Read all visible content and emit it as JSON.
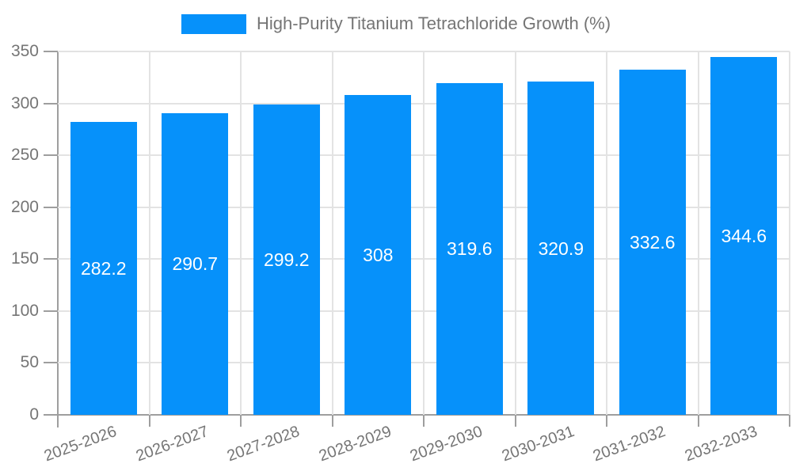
{
  "legend": {
    "label": "High-Purity Titanium Tetrachloride Growth (%)"
  },
  "colors": {
    "bar": "#0691fa",
    "grid": "#e3e3e3",
    "axis": "#9e9e9e",
    "tick_label": "#757575",
    "bar_label": "#ffffff",
    "legend_text": "#757575"
  },
  "chart_data": {
    "type": "bar",
    "title": "High-Purity Titanium Tetrachloride Growth (%)",
    "categories": [
      "2025-2026",
      "2026-2027",
      "2027-2028",
      "2028-2029",
      "2029-2030",
      "2030-2031",
      "2031-2032",
      "2032-2033"
    ],
    "values": [
      282.2,
      290.7,
      299.2,
      308,
      319.6,
      320.9,
      332.6,
      344.6
    ],
    "value_labels": [
      "282.2",
      "290.7",
      "299.2",
      "308",
      "319.6",
      "320.9",
      "332.6",
      "344.6"
    ],
    "xlabel": "",
    "ylabel": "",
    "ylim": [
      0,
      350
    ],
    "yticks": [
      0,
      50,
      100,
      150,
      200,
      250,
      300,
      350
    ],
    "grid": true,
    "legend_position": "top-center",
    "xtick_rotation_deg": -20
  }
}
